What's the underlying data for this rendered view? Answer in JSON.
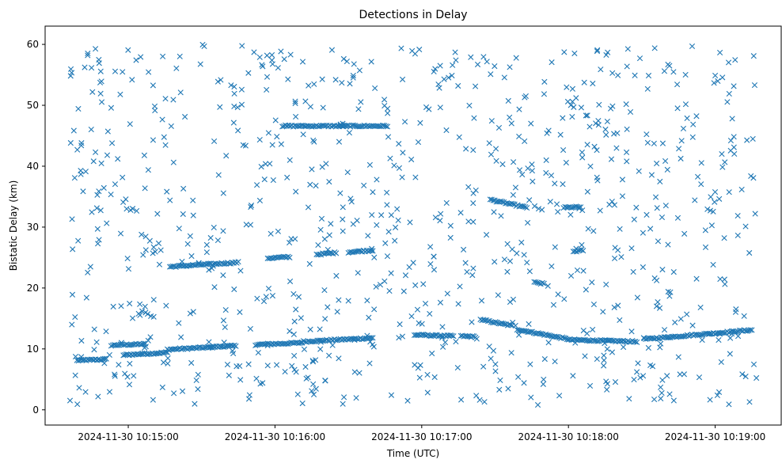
{
  "chart_data": {
    "type": "scatter",
    "title": "Detections in Delay",
    "xlabel": "Time (UTC)",
    "ylabel": "Bistatic Delay (km)",
    "x_unit": "time",
    "xlim": [
      "2024-11-30 10:14:26",
      "2024-11-30 10:19:27"
    ],
    "ylim": [
      -2.5,
      63
    ],
    "x_ticks": [
      {
        "value": "2024-11-30 10:15:00",
        "label": "2024-11-30 10:15:00"
      },
      {
        "value": "2024-11-30 10:16:00",
        "label": "2024-11-30 10:16:00"
      },
      {
        "value": "2024-11-30 10:17:00",
        "label": "2024-11-30 10:17:00"
      },
      {
        "value": "2024-11-30 10:18:00",
        "label": "2024-11-30 10:18:00"
      },
      {
        "value": "2024-11-30 10:19:00",
        "label": "2024-11-30 10:19:00"
      }
    ],
    "y_ticks": [
      0,
      10,
      20,
      30,
      40,
      50,
      60
    ],
    "grid": false,
    "legend": "none",
    "marker": "x",
    "color": "#1f77b4",
    "track_segments": [
      {
        "x": [
          "2024-11-30 10:14:39",
          "2024-11-30 10:14:51"
        ],
        "y": [
          8.1,
          8.3
        ]
      },
      {
        "x": [
          "2024-11-30 10:14:53",
          "2024-11-30 10:15:07"
        ],
        "y": [
          10.6,
          10.8
        ]
      },
      {
        "x": [
          "2024-11-30 10:14:58",
          "2024-11-30 10:15:16"
        ],
        "y": [
          9.0,
          9.4
        ]
      },
      {
        "x": [
          "2024-11-30 10:15:16",
          "2024-11-30 10:15:35"
        ],
        "y": [
          9.9,
          10.3
        ]
      },
      {
        "x": [
          "2024-11-30 10:15:33",
          "2024-11-30 10:15:44"
        ],
        "y": [
          10.3,
          10.5
        ]
      },
      {
        "x": [
          "2024-11-30 10:15:52",
          "2024-11-30 10:16:11"
        ],
        "y": [
          10.7,
          11.0
        ]
      },
      {
        "x": [
          "2024-11-30 10:16:11",
          "2024-11-30 10:16:40"
        ],
        "y": [
          11.2,
          11.8
        ]
      },
      {
        "x": [
          "2024-11-30 10:16:57",
          "2024-11-30 10:17:13"
        ],
        "y": [
          12.3,
          12.1
        ]
      },
      {
        "x": [
          "2024-11-30 10:17:16",
          "2024-11-30 10:17:22"
        ],
        "y": [
          12.1,
          12.0
        ]
      },
      {
        "x": [
          "2024-11-30 10:17:24",
          "2024-11-30 10:17:37"
        ],
        "y": [
          14.8,
          13.8
        ]
      },
      {
        "x": [
          "2024-11-30 10:17:39",
          "2024-11-30 10:18:00"
        ],
        "y": [
          13.2,
          11.6
        ]
      },
      {
        "x": [
          "2024-11-30 10:18:00",
          "2024-11-30 10:18:28"
        ],
        "y": [
          11.5,
          11.2
        ]
      },
      {
        "x": [
          "2024-11-30 10:18:31",
          "2024-11-30 10:19:15"
        ],
        "y": [
          11.6,
          13.1
        ]
      },
      {
        "x": [
          "2024-11-30 10:15:17",
          "2024-11-30 10:15:45"
        ],
        "y": [
          23.5,
          24.2
        ]
      },
      {
        "x": [
          "2024-11-30 10:15:57",
          "2024-11-30 10:16:06"
        ],
        "y": [
          24.9,
          25.1
        ]
      },
      {
        "x": [
          "2024-11-30 10:16:17",
          "2024-11-30 10:16:25"
        ],
        "y": [
          25.5,
          25.8
        ]
      },
      {
        "x": [
          "2024-11-30 10:16:30",
          "2024-11-30 10:16:40"
        ],
        "y": [
          25.9,
          26.2
        ]
      },
      {
        "x": [
          "2024-11-30 10:16:03",
          "2024-11-30 10:16:12"
        ],
        "y": [
          46.6,
          46.6
        ]
      },
      {
        "x": [
          "2024-11-30 10:16:12",
          "2024-11-30 10:16:28"
        ],
        "y": [
          46.6,
          46.6
        ]
      },
      {
        "x": [
          "2024-11-30 10:16:27",
          "2024-11-30 10:16:46"
        ],
        "y": [
          46.6,
          46.6
        ]
      },
      {
        "x": [
          "2024-11-30 10:17:28",
          "2024-11-30 10:17:43"
        ],
        "y": [
          34.5,
          33.2
        ]
      },
      {
        "x": [
          "2024-11-30 10:17:58",
          "2024-11-30 10:18:05"
        ],
        "y": [
          33.2,
          33.3
        ]
      },
      {
        "x": [
          "2024-11-30 10:17:46",
          "2024-11-30 10:17:50"
        ],
        "y": [
          20.9,
          20.7
        ]
      },
      {
        "x": [
          "2024-11-30 10:18:02",
          "2024-11-30 10:18:06"
        ],
        "y": [
          26.0,
          26.2
        ]
      }
    ],
    "notes_points": "Each segment is drawn as a run of x markers; remaining markers are scattered noise detections across 0–60 km."
  }
}
